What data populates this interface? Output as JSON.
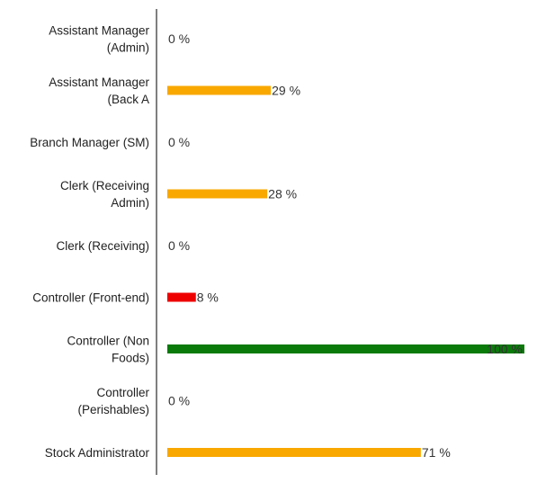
{
  "chart_data": {
    "type": "bar",
    "orientation": "horizontal",
    "categories": [
      [
        "Assistant Manager",
        "(Admin)"
      ],
      [
        "Assistant Manager",
        "(Back A"
      ],
      [
        "Branch Manager (SM)"
      ],
      [
        "Clerk (Receiving",
        "Admin)"
      ],
      [
        "Clerk (Receiving)"
      ],
      [
        "Controller (Front-end)"
      ],
      [
        "Controller (Non",
        "Foods)"
      ],
      [
        "Controller",
        "(Perishables)"
      ],
      [
        "Stock Administrator"
      ]
    ],
    "values": [
      0,
      29,
      0,
      28,
      0,
      8,
      100,
      0,
      71
    ],
    "value_labels": [
      "0 %",
      "29 %",
      "0 %",
      "28 %",
      "0 %",
      "8 %",
      "100 %",
      "0 %",
      "71 %"
    ],
    "colors": [
      "#f9a800",
      "#f9a800",
      "#f9a800",
      "#f9a800",
      "#f9a800",
      "#ee0000",
      "#0a7a0a",
      "#f9a800",
      "#f9a800"
    ],
    "xlim": [
      0,
      100
    ],
    "axis_color": "#555555",
    "grid": false,
    "legend": "none"
  }
}
